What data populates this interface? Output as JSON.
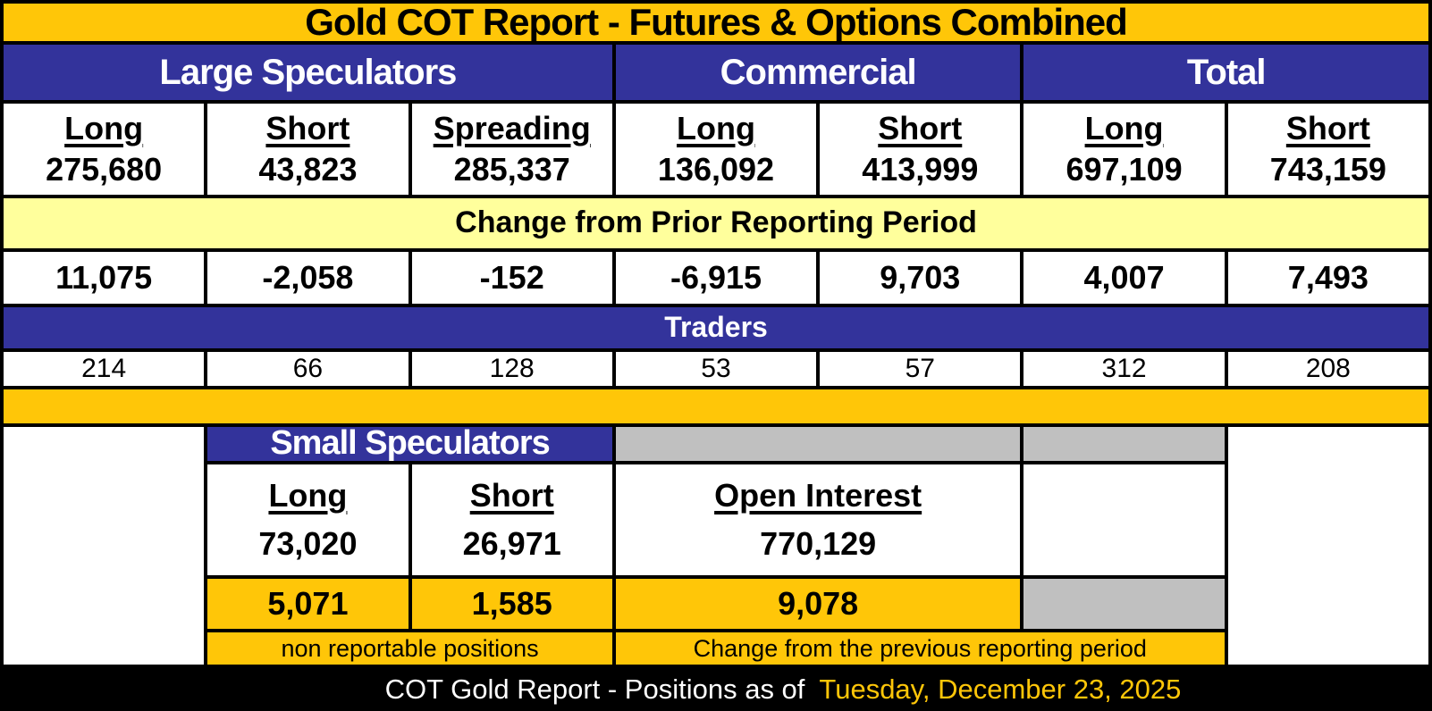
{
  "chart_data": {
    "type": "table",
    "title": "Gold COT Report - Futures & Options Combined",
    "groups": [
      "Large Speculators",
      "Commercial",
      "Total"
    ],
    "bands": {
      "change_label": "Change from Prior Reporting Period",
      "traders_label": "Traders"
    },
    "columns": [
      {
        "group": "Large Speculators",
        "header": "Long",
        "position": "275,680",
        "change": "11,075",
        "traders": "214"
      },
      {
        "group": "Large Speculators",
        "header": "Short",
        "position": "43,823",
        "change": "-2,058",
        "traders": "66"
      },
      {
        "group": "Large Speculators",
        "header": "Spreading",
        "position": "285,337",
        "change": "-152",
        "traders": "128"
      },
      {
        "group": "Commercial",
        "header": "Long",
        "position": "136,092",
        "change": "-6,915",
        "traders": "53"
      },
      {
        "group": "Commercial",
        "header": "Short",
        "position": "413,999",
        "change": "9,703",
        "traders": "57"
      },
      {
        "group": "Total",
        "header": "Long",
        "position": "697,109",
        "change": "4,007",
        "traders": "312"
      },
      {
        "group": "Total",
        "header": "Short",
        "position": "743,159",
        "change": "7,493",
        "traders": "208"
      }
    ],
    "small_speculators": {
      "header": "Small Speculators",
      "columns": [
        {
          "header": "Long",
          "position": "73,020",
          "change": "5,071"
        },
        {
          "header": "Short",
          "position": "26,971",
          "change": "1,585"
        },
        {
          "header": "Open Interest",
          "position": "770,129",
          "change": "9,078"
        }
      ],
      "footnote_left": "non reportable positions",
      "footnote_right": "Change from the previous reporting period"
    },
    "footer": {
      "text": "COT Gold Report - Positions as of",
      "date": "Tuesday, December 23, 2025"
    }
  },
  "colors": {
    "gold": "#FFC608",
    "pale_yellow": "#FFFF9C",
    "header_blue": "#33339B",
    "gray": "#C0C0C0",
    "footer_bg": "#000000",
    "footer_date_text": "#FFC608"
  }
}
